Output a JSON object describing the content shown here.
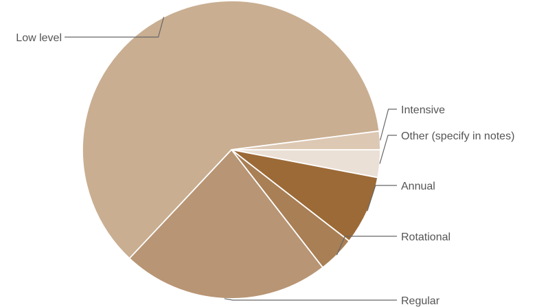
{
  "chart_data": {
    "type": "pie",
    "title": "",
    "start_angle_deg": 90,
    "direction": "clockwise",
    "legend": "none",
    "slices": [
      {
        "name": "Other (specify in notes)",
        "value": 3.0,
        "color": "#ebe0d6"
      },
      {
        "name": "Annual",
        "value": 7.5,
        "color": "#9c6a37"
      },
      {
        "name": "Rotational",
        "value": 4.0,
        "color": "#a97f55"
      },
      {
        "name": "Regular",
        "value": 22.5,
        "color": "#b89574"
      },
      {
        "name": "Low level",
        "value": 61.0,
        "color": "#c9ae91"
      },
      {
        "name": "Intensive",
        "value": 2.0,
        "color": "#ddc8b4"
      }
    ]
  }
}
